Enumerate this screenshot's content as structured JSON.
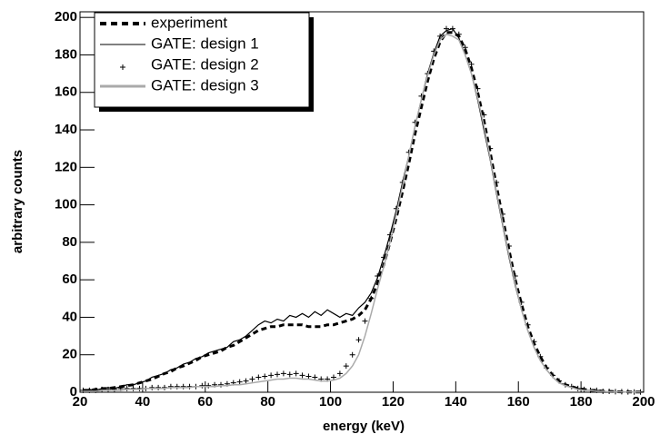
{
  "chart_data": {
    "type": "line",
    "x_label": "energy (keV)",
    "y_label": "arbitrary counts",
    "xlim": [
      20,
      200
    ],
    "ylim": [
      0,
      203
    ],
    "xticks": [
      20,
      40,
      60,
      80,
      100,
      120,
      140,
      160,
      180,
      200
    ],
    "yticks": [
      0,
      20,
      40,
      60,
      80,
      100,
      120,
      140,
      160,
      180,
      200
    ],
    "legend": "upper left",
    "x": [
      21,
      23,
      25,
      27,
      29,
      31,
      33,
      35,
      37,
      39,
      41,
      43,
      45,
      47,
      49,
      51,
      53,
      55,
      57,
      59,
      61,
      63,
      65,
      67,
      69,
      71,
      73,
      75,
      77,
      79,
      81,
      83,
      85,
      87,
      89,
      91,
      93,
      95,
      97,
      99,
      101,
      103,
      105,
      107,
      109,
      111,
      113,
      115,
      117,
      119,
      121,
      123,
      125,
      127,
      129,
      131,
      133,
      135,
      137,
      139,
      141,
      143,
      145,
      147,
      149,
      151,
      153,
      155,
      157,
      159,
      161,
      163,
      165,
      167,
      169,
      171,
      173,
      175,
      177,
      179,
      181,
      183,
      185,
      187,
      189,
      191,
      193,
      195,
      197,
      199
    ],
    "series": [
      {
        "name": "experiment",
        "color": "#000000",
        "style": "dashed",
        "values": [
          1,
          1,
          1.5,
          2,
          2,
          2.5,
          3,
          3.5,
          4,
          5,
          6,
          7,
          8.5,
          10,
          11,
          13,
          14,
          15.5,
          17,
          19,
          20,
          21,
          22,
          24,
          25,
          27,
          29,
          31,
          33,
          34,
          35,
          35,
          36,
          36,
          36,
          36,
          35,
          35,
          35,
          36,
          36,
          37,
          38,
          39,
          41,
          44,
          50,
          58,
          68,
          80,
          93,
          107,
          122,
          138,
          152,
          166,
          178,
          187,
          192,
          192,
          190,
          183,
          173,
          160,
          145,
          128,
          110,
          93,
          76,
          60,
          47,
          35,
          26,
          19,
          13,
          9,
          6,
          4,
          3,
          2,
          1.5,
          1,
          1,
          0.5,
          0.5,
          0.3,
          0.2,
          0.2,
          0.1,
          0.1
        ]
      },
      {
        "name": "GATE: design 1",
        "color": "#000000",
        "style": "step",
        "values": [
          1,
          1.5,
          1,
          2,
          2.5,
          2,
          3,
          4,
          4,
          5,
          6,
          8,
          9,
          10,
          12,
          13,
          15,
          16,
          18,
          19,
          21,
          22,
          23,
          24,
          27,
          28,
          30,
          33,
          36,
          38,
          37,
          39,
          38,
          41,
          40,
          42,
          40,
          43,
          41,
          44,
          42,
          40,
          42,
          41,
          45,
          48,
          53,
          61,
          72,
          84,
          97,
          112,
          126,
          142,
          156,
          170,
          181,
          190,
          193,
          194,
          189,
          180,
          170,
          156,
          140,
          124,
          106,
          89,
          72,
          57,
          44,
          33,
          24,
          17,
          12,
          8,
          5,
          4,
          2.5,
          2,
          1,
          1,
          0.5,
          0.5,
          0.3,
          0.2,
          0.2,
          0.1,
          0.1,
          0.1
        ]
      },
      {
        "name": "GATE: design 2",
        "color": "#000000",
        "style": "markers",
        "values": [
          1,
          1,
          1,
          1.5,
          1.5,
          1.5,
          2,
          2,
          2,
          2,
          2,
          2.5,
          2.5,
          2.5,
          3,
          3,
          3,
          3,
          3,
          3.5,
          3.5,
          4,
          4,
          4.5,
          5,
          5.5,
          6,
          7,
          8,
          8.5,
          9,
          9.5,
          10,
          9.5,
          10,
          9,
          8.5,
          8,
          7,
          7,
          8,
          10,
          14,
          20,
          28,
          38,
          50,
          62,
          72,
          84,
          98,
          112,
          128,
          144,
          158,
          170,
          182,
          190,
          194,
          194,
          191,
          184,
          175,
          162,
          148,
          130,
          112,
          95,
          78,
          62,
          48,
          36,
          27,
          19,
          13,
          9,
          6,
          4,
          3,
          2,
          1.5,
          1,
          1,
          0.5,
          0.5,
          0.3,
          0.3,
          0.2,
          0.1,
          0.1
        ]
      },
      {
        "name": "GATE: design 3",
        "color": "#aaaaaa",
        "style": "step",
        "values": [
          0.5,
          0.5,
          0.5,
          1,
          1,
          1,
          1,
          1.5,
          1.5,
          1.5,
          2,
          2,
          2,
          2,
          2.5,
          2.5,
          2.5,
          2.5,
          3,
          3,
          3,
          3,
          3.5,
          3.5,
          4,
          4,
          4.5,
          5,
          5.5,
          6,
          6.5,
          7,
          7,
          7.5,
          7.5,
          7,
          7,
          6.5,
          6,
          6,
          6.5,
          7.5,
          10,
          14,
          20,
          30,
          42,
          55,
          67,
          80,
          95,
          110,
          126,
          142,
          156,
          169,
          180,
          188,
          191,
          190,
          188,
          180,
          170,
          157,
          142,
          125,
          107,
          90,
          73,
          58,
          44,
          33,
          24,
          17,
          12,
          8,
          5,
          3.5,
          2.5,
          1.5,
          1,
          1,
          0.5,
          0.5,
          0.3,
          0.2,
          0.2,
          0.1,
          0.1,
          0.1
        ]
      }
    ]
  }
}
